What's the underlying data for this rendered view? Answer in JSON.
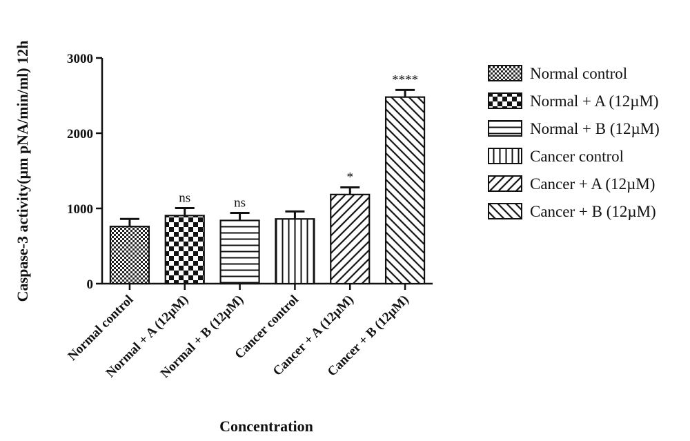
{
  "chart_data": {
    "type": "bar",
    "ylabel": "Caspase-3 activity(µm pNA/min/ml) 12h",
    "xlabel": "Concentration",
    "ylim": [
      0,
      3000
    ],
    "yticks": [
      0,
      1000,
      2000,
      3000
    ],
    "legend_position": "right",
    "categories": [
      "Normal control",
      "Normal + A (12µM)",
      "Normal + B (12µM)",
      "Cancer control",
      "Cancer + A (12µM)",
      "Cancer + B (12µM)"
    ],
    "legend_labels": [
      "Normal control",
      "Normal + A (12µM)",
      "Normal + B (12µM)",
      "Cancer control",
      "Cancer + A (12µM)",
      "Cancer + B (12µM)"
    ],
    "values": [
      760,
      905,
      840,
      860,
      1185,
      2480
    ],
    "errors": [
      100,
      100,
      100,
      100,
      95,
      95
    ],
    "significance": [
      "",
      "ns",
      "ns",
      "",
      "*",
      "****"
    ],
    "fill_patterns": [
      "dense-checker",
      "checkerboard",
      "horizontal-lines",
      "vertical-lines",
      "diagonal-lines-right",
      "diagonal-lines-left"
    ]
  }
}
